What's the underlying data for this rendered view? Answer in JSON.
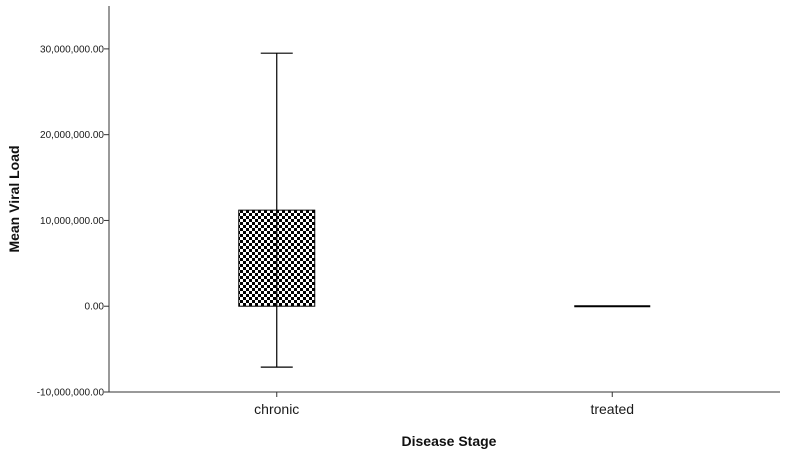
{
  "chart_data": {
    "type": "bar",
    "xlabel": "Disease Stage",
    "ylabel": "Mean Viral Load",
    "categories": [
      "chronic",
      "treated"
    ],
    "series": [
      {
        "values": [
          11200000,
          0
        ],
        "error_lower": [
          -7100000,
          0
        ],
        "error_upper": [
          29500000,
          0
        ]
      }
    ],
    "ylim": [
      -10000000,
      35000000
    ],
    "y_ticks": [
      -10000000,
      0,
      10000000,
      20000000,
      30000000
    ],
    "y_tick_labels": [
      "-10,000,000.00",
      "0.00",
      "10,000,000.00",
      "20,000,000.00",
      "30,000,000.00"
    ],
    "bar_fill": "checkerboard",
    "colors": {
      "bar_light": "#ffffff",
      "bar_dark": "#000000",
      "axis": "#333333"
    },
    "grid": false,
    "legend": "none"
  }
}
